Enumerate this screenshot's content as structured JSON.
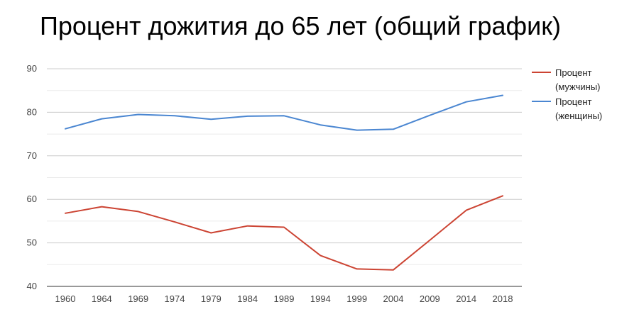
{
  "chart_data": {
    "type": "line",
    "title": "Процент дожития до 65 лет (общий график)",
    "xlabel": "",
    "ylabel": "",
    "categories": [
      "1960",
      "1964",
      "1969",
      "1974",
      "1979",
      "1984",
      "1989",
      "1994",
      "1999",
      "2004",
      "2009",
      "2014",
      "2018"
    ],
    "ylim": [
      40,
      90
    ],
    "yticks": [
      40,
      50,
      60,
      70,
      80,
      90
    ],
    "grid": true,
    "legend_position": "right",
    "series": [
      {
        "name_lines": [
          "Процент",
          "(мужчины)"
        ],
        "color": "#cc4433",
        "values": [
          56.8,
          58.3,
          57.2,
          54.8,
          52.3,
          53.9,
          53.6,
          47.1,
          44.0,
          43.8,
          50.6,
          57.5,
          60.8
        ]
      },
      {
        "name_lines": [
          "Процент",
          "(женщины)"
        ],
        "color": "#4a86d1",
        "values": [
          76.2,
          78.5,
          79.5,
          79.2,
          78.4,
          79.1,
          79.2,
          77.1,
          75.9,
          76.1,
          79.3,
          82.4,
          83.9
        ]
      }
    ]
  }
}
